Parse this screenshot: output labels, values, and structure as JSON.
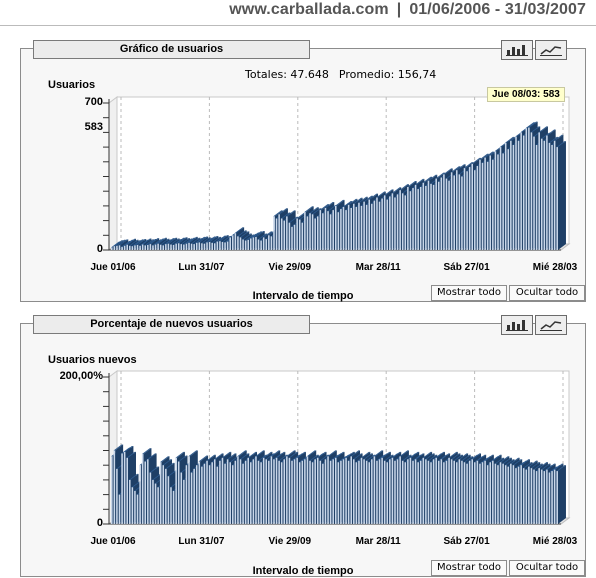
{
  "header": {
    "site": "www.carballada.com",
    "separator": "|",
    "date_range": "01/06/2006 - 31/03/2007"
  },
  "icons": {
    "bar_chart": "bar-chart-icon",
    "line_chart": "line-chart-icon"
  },
  "colors": {
    "bar_light": "#c9d7ea",
    "bar_dark": "#2d5a8e",
    "bar_edge": "#1e3f66"
  },
  "chart_data": [
    {
      "type": "bar",
      "title": "Gráfico de usuarios",
      "ylabel": "Usuarios",
      "xlabel": "Intervalo de tiempo",
      "ylim": [
        0,
        700
      ],
      "yticks": [
        {
          "value": 700,
          "label": "700"
        },
        {
          "value": 583,
          "label": "583"
        },
        {
          "value": 0,
          "label": "0"
        }
      ],
      "xticks": [
        "Jue 01/06",
        "Lun 31/07",
        "Vie 29/09",
        "Mar 28/11",
        "Sáb 27/01",
        "Mié 28/03"
      ],
      "totals_label": "Totales: 47.648",
      "average_label": "Promedio: 156,74",
      "tooltip": "Jue 08/03: 583",
      "series": [
        {
          "values": [
            12,
            18,
            20,
            22,
            15,
            20,
            25,
            20,
            18,
            22,
            24,
            20,
            26,
            22,
            24,
            28,
            22,
            26,
            30,
            25,
            22,
            28,
            30,
            26,
            24,
            30,
            32,
            28,
            26,
            30,
            34,
            30,
            28,
            34,
            36,
            32,
            30,
            36,
            38,
            34,
            32,
            40,
            42,
            38,
            36,
            40,
            60,
            70,
            80,
            65,
            60,
            50,
            45,
            48,
            55,
            60,
            62,
            50,
            45,
            60,
            52,
            70,
            65,
            160,
            150,
            170,
            150,
            140,
            160,
            130,
            110,
            120,
            150,
            145,
            130,
            180,
            160,
            175,
            170,
            150,
            160,
            190,
            175,
            200,
            185,
            170,
            190,
            210,
            180,
            195,
            205,
            190,
            215,
            200,
            220,
            205,
            225,
            210,
            230,
            215,
            240,
            220,
            235,
            250,
            230,
            245,
            260,
            240,
            255,
            270,
            250,
            265,
            285,
            270,
            260,
            300,
            280,
            295,
            310,
            290,
            300,
            320,
            305,
            330,
            315,
            310,
            340,
            325,
            345,
            360,
            340,
            330,
            370,
            355,
            380,
            360,
            350,
            390,
            375,
            395,
            410,
            380,
            400,
            430,
            415,
            440,
            420,
            450,
            430,
            470,
            455,
            490,
            460,
            510,
            480,
            520,
            500,
            540,
            520,
            560,
            545,
            580,
            583,
            560,
            540,
            500,
            560,
            530,
            520,
            545,
            510,
            500,
            520,
            490
          ]
        }
      ]
    },
    {
      "type": "bar",
      "title": "Porcentaje de nuevos usuarios",
      "ylabel": "Usuarios nuevos",
      "xlabel": "Intervalo de tiempo",
      "ylim": [
        0,
        200
      ],
      "yticks": [
        {
          "value": 200,
          "label": "200,00%"
        },
        {
          "value": 0,
          "label": "0"
        }
      ],
      "xticks": [
        "Jue 01/06",
        "Lun 31/07",
        "Vie 29/09",
        "Mar 28/11",
        "Sáb 27/01",
        "Mié 28/03"
      ],
      "series": [
        {
          "values": [
            92,
            100,
            75,
            40,
            96,
            98,
            90,
            60,
            50,
            45,
            40,
            80,
            95,
            85,
            88,
            70,
            60,
            55,
            50,
            84,
            80,
            75,
            65,
            50,
            45,
            90,
            85,
            70,
            60,
            80,
            92,
            70,
            75,
            80,
            85,
            78,
            82,
            86,
            80,
            84,
            88,
            78,
            86,
            90,
            82,
            88,
            84,
            80,
            86,
            92,
            88,
            82,
            86,
            90,
            84,
            88,
            92,
            86,
            84,
            90,
            88,
            86,
            92,
            88,
            90,
            86,
            84,
            88,
            92,
            90,
            86,
            88,
            90,
            84,
            86,
            88,
            92,
            86,
            84,
            88,
            90,
            86,
            82,
            88,
            92,
            86,
            88,
            90,
            84,
            86,
            88,
            90,
            86,
            92,
            88,
            84,
            86,
            90,
            88,
            86,
            84,
            88,
            92,
            86,
            88,
            90,
            86,
            84,
            88,
            90,
            86,
            88,
            92,
            86,
            84,
            88,
            90,
            86,
            88,
            84,
            86,
            90,
            88,
            86,
            84,
            88,
            90,
            86,
            88,
            84,
            86,
            90,
            88,
            86,
            84,
            88,
            86,
            84,
            82,
            86,
            88,
            84,
            86,
            82,
            84,
            86,
            80,
            84,
            86,
            82,
            80,
            84,
            82,
            80,
            78,
            82,
            80,
            76,
            78,
            80,
            76,
            74,
            78,
            76,
            74,
            72,
            76,
            74,
            72,
            74,
            70,
            72,
            74,
            72
          ]
        }
      ]
    }
  ],
  "buttons": {
    "show_all": "Mostrar todo",
    "hide_all": "Ocultar todo"
  }
}
